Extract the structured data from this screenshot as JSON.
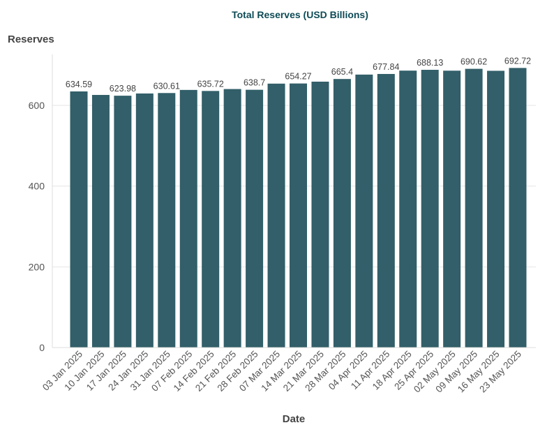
{
  "chart_data": {
    "type": "bar",
    "title": "Total Reserves (USD Billions)",
    "xlabel": "Date",
    "ylabel": "Reserves",
    "ylim": [
      0,
      720
    ],
    "yticks": [
      0,
      200,
      400,
      600
    ],
    "grid": true,
    "colors": {
      "bar": "#325f69",
      "title": "#0d4a55"
    },
    "categories": [
      "03 Jan 2025",
      "10 Jan 2025",
      "17 Jan 2025",
      "24 Jan 2025",
      "31 Jan 2025",
      "07 Feb 2025",
      "14 Feb 2025",
      "21 Feb 2025",
      "28 Feb 2025",
      "07 Mar 2025",
      "14 Mar 2025",
      "21 Mar 2025",
      "28 Mar 2025",
      "04 Apr 2025",
      "11 Apr 2025",
      "18 Apr 2025",
      "25 Apr 2025",
      "02 May 2025",
      "09 May 2025",
      "16 May 2025",
      "23 May 2025"
    ],
    "values": [
      634.59,
      625.9,
      623.98,
      629.5,
      630.61,
      638.3,
      635.72,
      640.5,
      638.7,
      653.9,
      654.27,
      658.8,
      665.4,
      676.3,
      677.84,
      686.1,
      688.13,
      686.0,
      690.62,
      685.7,
      692.72
    ],
    "data_labels": [
      "634.59",
      "",
      "623.98",
      "",
      "630.61",
      "",
      "635.72",
      "",
      "638.7",
      "",
      "654.27",
      "",
      "665.4",
      "",
      "677.84",
      "",
      "688.13",
      "",
      "690.62",
      "",
      "692.72"
    ]
  }
}
